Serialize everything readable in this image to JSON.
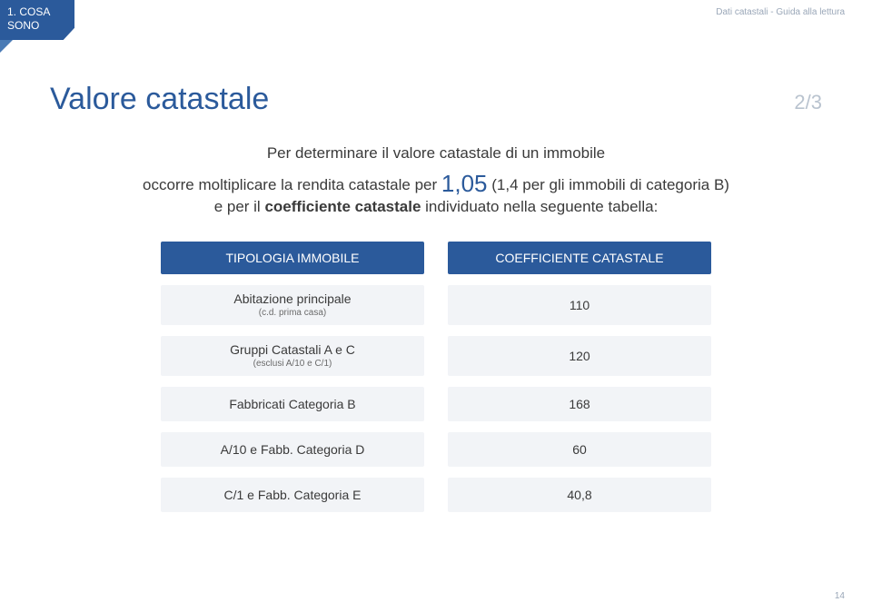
{
  "header": {
    "tab_line1": "1. COSA",
    "tab_line2": "SONO",
    "breadcrumb": "Dati catastali - Guida alla lettura"
  },
  "title": "Valore catastale",
  "pager": "2/3",
  "intro": {
    "line1": "Per determinare il valore catastale di un immobile",
    "line2_a": "occorre moltiplicare la rendita catastale per",
    "multiplier": "1,05",
    "line2_b": "(1,4 per gli immobili di categoria B)",
    "line3_a": "e per il",
    "coeff_label": "coefficiente catastale",
    "line3_b": "individuato nella seguente tabella:"
  },
  "table": {
    "headers": {
      "left": "TIPOLOGIA IMMOBILE",
      "right": "COEFFICIENTE CATASTALE"
    },
    "rows": [
      {
        "label": "Abitazione principale",
        "sub": "(c.d. prima casa)",
        "value": "110"
      },
      {
        "label": "Gruppi Catastali A e C",
        "sub": "(esclusi A/10 e C/1)",
        "value": "120"
      },
      {
        "label": "Fabbricati Categoria B",
        "sub": "",
        "value": "168"
      },
      {
        "label": "A/10 e Fabb. Categoria D",
        "sub": "",
        "value": "60"
      },
      {
        "label": "C/1 e Fabb. Categoria E",
        "sub": "",
        "value": "40,8"
      }
    ]
  },
  "page_number": "14",
  "colors": {
    "primary": "#2b5a9b",
    "cell_bg": "#f2f4f7",
    "text": "#3a3a3a",
    "muted": "#9aa7b8"
  }
}
